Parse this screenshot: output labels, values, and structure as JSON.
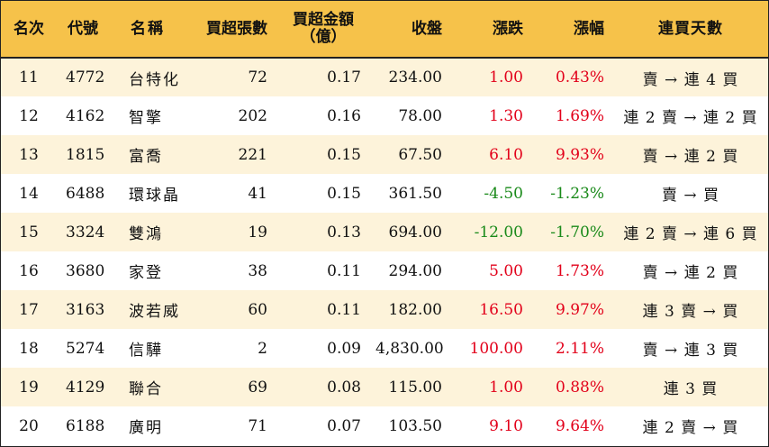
{
  "headers": {
    "rank": "名次",
    "code": "代號",
    "name": "名稱",
    "shares": "買超張數",
    "amount_line1": "買超金額",
    "amount_line2": "（億）",
    "close": "收盤",
    "change": "漲跌",
    "pct": "漲幅",
    "consecutive": "連買天數"
  },
  "colors": {
    "header_bg": "#f6c24a",
    "stripe_bg": "#fdf3da",
    "up": "#e2001a",
    "down": "#1a8a1a"
  },
  "rows": [
    {
      "rank": "11",
      "code": "4772",
      "name": "台特化",
      "shares": "72",
      "amount": "0.17",
      "close": "234.00",
      "change": "1.00",
      "pct": "0.43%",
      "direction": "up",
      "consecutive": "賣 → 連 4 買"
    },
    {
      "rank": "12",
      "code": "4162",
      "name": "智擎",
      "shares": "202",
      "amount": "0.16",
      "close": "78.00",
      "change": "1.30",
      "pct": "1.69%",
      "direction": "up",
      "consecutive": "連 2 賣 → 連 2 買"
    },
    {
      "rank": "13",
      "code": "1815",
      "name": "富喬",
      "shares": "221",
      "amount": "0.15",
      "close": "67.50",
      "change": "6.10",
      "pct": "9.93%",
      "direction": "up",
      "consecutive": "賣 → 連 2 買"
    },
    {
      "rank": "14",
      "code": "6488",
      "name": "環球晶",
      "shares": "41",
      "amount": "0.15",
      "close": "361.50",
      "change": "-4.50",
      "pct": "-1.23%",
      "direction": "down",
      "consecutive": "賣 → 買"
    },
    {
      "rank": "15",
      "code": "3324",
      "name": "雙鴻",
      "shares": "19",
      "amount": "0.13",
      "close": "694.00",
      "change": "-12.00",
      "pct": "-1.70%",
      "direction": "down",
      "consecutive": "連 2 賣 → 連 6 買"
    },
    {
      "rank": "16",
      "code": "3680",
      "name": "家登",
      "shares": "38",
      "amount": "0.11",
      "close": "294.00",
      "change": "5.00",
      "pct": "1.73%",
      "direction": "up",
      "consecutive": "賣 → 連 2 買"
    },
    {
      "rank": "17",
      "code": "3163",
      "name": "波若威",
      "shares": "60",
      "amount": "0.11",
      "close": "182.00",
      "change": "16.50",
      "pct": "9.97%",
      "direction": "up",
      "consecutive": "連 3 賣 → 買"
    },
    {
      "rank": "18",
      "code": "5274",
      "name": "信驊",
      "shares": "2",
      "amount": "0.09",
      "close": "4,830.00",
      "change": "100.00",
      "pct": "2.11%",
      "direction": "up",
      "consecutive": "賣 → 連 3 買"
    },
    {
      "rank": "19",
      "code": "4129",
      "name": "聯合",
      "shares": "69",
      "amount": "0.08",
      "close": "115.00",
      "change": "1.00",
      "pct": "0.88%",
      "direction": "up",
      "consecutive": "連 3 買"
    },
    {
      "rank": "20",
      "code": "6188",
      "name": "廣明",
      "shares": "71",
      "amount": "0.07",
      "close": "103.50",
      "change": "9.10",
      "pct": "9.64%",
      "direction": "up",
      "consecutive": "連 2 賣 → 買"
    }
  ]
}
